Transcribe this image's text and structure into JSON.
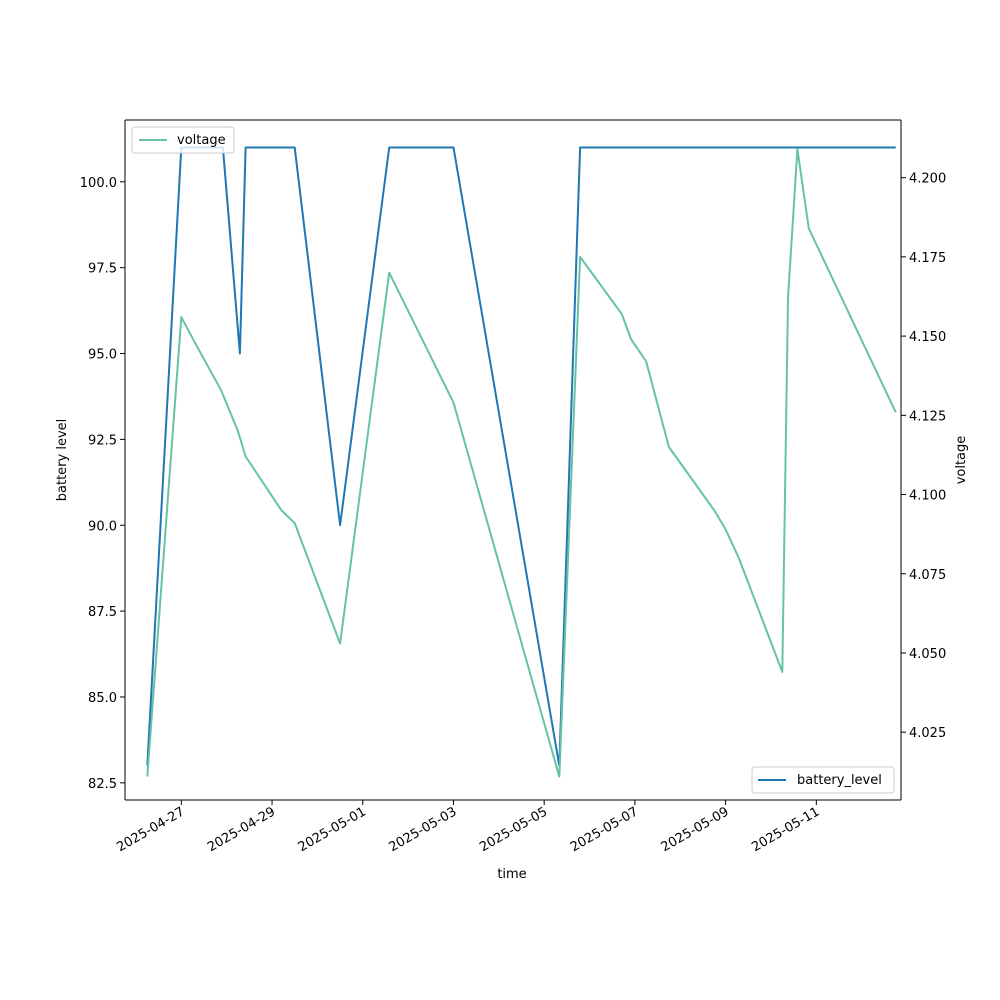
{
  "chart_data": {
    "type": "line",
    "xlabel": "time",
    "x_ticks": [
      "2025-04-27",
      "2025-04-29",
      "2025-05-01",
      "2025-05-03",
      "2025-05-05",
      "2025-05-07",
      "2025-05-09",
      "2025-05-11"
    ],
    "xlim": [
      "2025-04-25T18:12",
      "2025-05-12T20:48"
    ],
    "left_axis": {
      "label": "battery level",
      "ylim": [
        82.0,
        101.8
      ],
      "ticks": [
        "82.5",
        "85.0",
        "87.5",
        "90.0",
        "92.5",
        "95.0",
        "97.5",
        "100.0"
      ]
    },
    "right_axis": {
      "label": "voltage",
      "ylim": [
        4.0036,
        4.2182
      ],
      "ticks": [
        "4.025",
        "4.050",
        "4.075",
        "4.100",
        "4.125",
        "4.150",
        "4.175",
        "4.200"
      ]
    },
    "series": [
      {
        "name": "battery_level",
        "axis": "left",
        "color": "#1f77b4",
        "legend_location": "lower right",
        "points": [
          {
            "x": "2025-04-26T06:00",
            "y": 83
          },
          {
            "x": "2025-04-27T00:00",
            "y": 101
          },
          {
            "x": "2025-04-27T22:00",
            "y": 101
          },
          {
            "x": "2025-04-28T07:00",
            "y": 95
          },
          {
            "x": "2025-04-28T10:00",
            "y": 101
          },
          {
            "x": "2025-04-29T12:00",
            "y": 101
          },
          {
            "x": "2025-04-30T12:00",
            "y": 90
          },
          {
            "x": "2025-05-01T14:00",
            "y": 101
          },
          {
            "x": "2025-05-03T00:00",
            "y": 101
          },
          {
            "x": "2025-05-05T08:00",
            "y": 83
          },
          {
            "x": "2025-05-05T19:00",
            "y": 101
          },
          {
            "x": "2025-05-12T18:00",
            "y": 101
          }
        ]
      },
      {
        "name": "voltage",
        "axis": "right",
        "color": "#66c2a5",
        "legend_location": "upper left",
        "points": [
          {
            "x": "2025-04-26T06:00",
            "y": 4.011
          },
          {
            "x": "2025-04-27T00:00",
            "y": 4.156
          },
          {
            "x": "2025-04-27T09:00",
            "y": 4.146
          },
          {
            "x": "2025-04-27T21:00",
            "y": 4.133
          },
          {
            "x": "2025-04-28T06:00",
            "y": 4.12
          },
          {
            "x": "2025-04-28T10:00",
            "y": 4.112
          },
          {
            "x": "2025-04-29T05:00",
            "y": 4.095
          },
          {
            "x": "2025-04-29T12:00",
            "y": 4.091
          },
          {
            "x": "2025-04-30T12:00",
            "y": 4.053
          },
          {
            "x": "2025-05-01T14:00",
            "y": 4.17
          },
          {
            "x": "2025-05-03T00:00",
            "y": 4.129
          },
          {
            "x": "2025-05-05T08:00",
            "y": 4.011
          },
          {
            "x": "2025-05-05T19:00",
            "y": 4.175
          },
          {
            "x": "2025-05-06T17:00",
            "y": 4.157
          },
          {
            "x": "2025-05-06T22:00",
            "y": 4.149
          },
          {
            "x": "2025-05-07T06:00",
            "y": 4.142
          },
          {
            "x": "2025-05-07T18:00",
            "y": 4.115
          },
          {
            "x": "2025-05-08T18:00",
            "y": 4.095
          },
          {
            "x": "2025-05-09T00:00",
            "y": 4.089
          },
          {
            "x": "2025-05-09T07:00",
            "y": 4.08
          },
          {
            "x": "2025-05-10T06:00",
            "y": 4.044
          },
          {
            "x": "2025-05-10T09:00",
            "y": 4.162
          },
          {
            "x": "2025-05-10T14:00",
            "y": 4.209
          },
          {
            "x": "2025-05-10T20:00",
            "y": 4.184
          },
          {
            "x": "2025-05-12T18:00",
            "y": 4.126
          }
        ]
      }
    ]
  }
}
